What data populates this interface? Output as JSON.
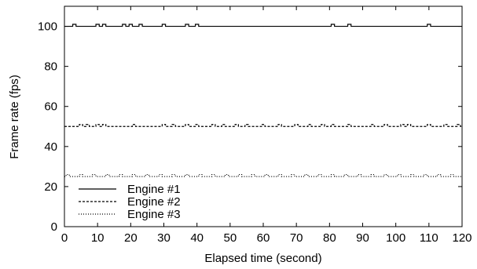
{
  "chart_data": {
    "type": "line",
    "title": "",
    "xlabel": "Elapsed time (second)",
    "ylabel": "Frame rate (fps)",
    "xlim": [
      0,
      120
    ],
    "ylim": [
      0,
      110
    ],
    "xticks": [
      0,
      10,
      20,
      30,
      40,
      50,
      60,
      70,
      80,
      90,
      100,
      110,
      120
    ],
    "yticks": [
      0,
      20,
      40,
      60,
      80,
      100
    ],
    "grid": false,
    "legend_position": "bottom-left",
    "series": [
      {
        "name": "Engine #1",
        "line_style": "solid",
        "color": "#000000",
        "base": 100,
        "spike_value": 101,
        "spike_x": [
          3,
          10,
          12,
          18,
          20,
          23,
          30,
          37,
          40,
          81,
          86,
          110
        ]
      },
      {
        "name": "Engine #2",
        "line_style": "dashed",
        "color": "#000000",
        "base": 50,
        "spike_value": 51,
        "spike_x": [
          5,
          7,
          10,
          12,
          21,
          30,
          33,
          37,
          40,
          45,
          48,
          52,
          55,
          60,
          65,
          70,
          74,
          78,
          81,
          86,
          93,
          97,
          102,
          104,
          110,
          115,
          119
        ]
      },
      {
        "name": "Engine #3",
        "line_style": "dotted",
        "color": "#000000",
        "base": 25,
        "spike_value": 26,
        "spike_x": [
          1,
          5,
          9,
          13,
          17,
          21,
          25,
          29,
          33,
          37,
          41,
          45,
          49,
          53,
          57,
          61,
          65,
          69,
          73,
          77,
          81,
          85,
          89,
          93,
          97,
          101,
          105,
          109,
          113,
          117
        ]
      }
    ]
  }
}
